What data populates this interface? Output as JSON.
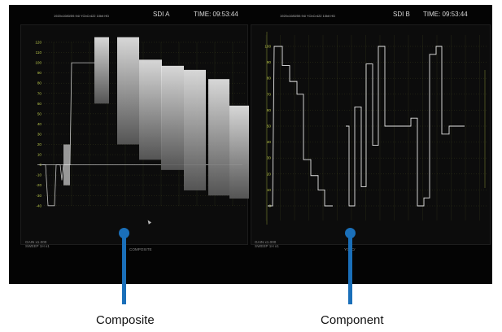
{
  "colors": {
    "graticule": "#b9c64a",
    "trace": "#e6e6e6",
    "accent": "#1a6fb9",
    "background": "#040404"
  },
  "left_scope": {
    "format": "1920x1080/59.94i YCbCr422 10bit HD",
    "input": "SDI A",
    "time": "TIME: 09:53:44",
    "scale_labels": [
      "120",
      "110",
      "100",
      "90",
      "80",
      "70",
      "60",
      "50",
      "40",
      "30",
      "20",
      "10",
      "0",
      "-10",
      "-20",
      "-30",
      "-40"
    ],
    "gain": "GAIN x1.000",
    "sweep": "SWEEP 1H x1",
    "mode": "COMPOSITE"
  },
  "right_scope": {
    "format": "1920x1080/59.94i YCbCr422 10bit HD",
    "input": "SDI B",
    "time": "TIME: 09:53:44",
    "scale_labels": [
      "100",
      "90",
      "80",
      "70",
      "60",
      "50",
      "40",
      "30",
      "20",
      "10",
      "0"
    ],
    "gain": "GAIN x1.000",
    "sweep": "SWEEP 1H x1",
    "mode": "YCbCr"
  },
  "callouts": {
    "composite": "Composite",
    "component": "Component"
  }
}
